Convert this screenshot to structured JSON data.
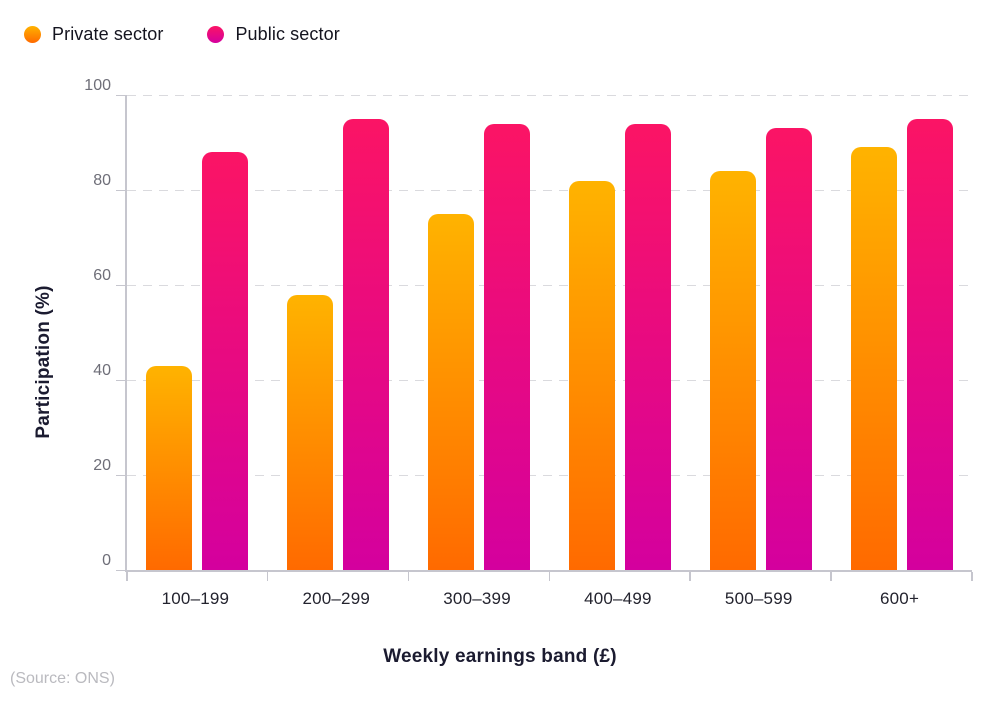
{
  "legend": {
    "items": [
      {
        "label": "Private sector"
      },
      {
        "label": "Public sector"
      }
    ]
  },
  "chart_data": {
    "type": "bar",
    "categories": [
      "100–199",
      "200–299",
      "300–399",
      "400–499",
      "500–599",
      "600+"
    ],
    "series": [
      {
        "name": "Private sector",
        "values": [
          43,
          58,
          75,
          82,
          84,
          89
        ],
        "gradient_top": "#FFB300",
        "gradient_bottom": "#FF6A00"
      },
      {
        "name": "Public sector",
        "values": [
          88,
          95,
          94,
          94,
          93,
          95
        ],
        "gradient_top": "#FB1465",
        "gradient_bottom": "#D4009E"
      }
    ],
    "title": "",
    "xlabel": "Weekly earnings band (£)",
    "ylabel": "Participation (%)",
    "ylim": [
      0,
      100
    ],
    "yticks": [
      0,
      20,
      40,
      60,
      80,
      100
    ],
    "grid": "horizontal-dashed",
    "legend_position": "top-left"
  },
  "footer": {
    "source": "(Source: ONS)"
  },
  "colors": {
    "private_top": "#FFB300",
    "private_bottom": "#FF6A00",
    "public_top": "#FB1465",
    "public_bottom": "#D4009E",
    "gridline": "#dadade",
    "axis": "#c6c6ce",
    "y_tick_label": "#6e6e78",
    "x_tick_label": "#23232e",
    "axis_title": "#1b1b30",
    "source_text": "#bababf",
    "background": "#ffffff"
  }
}
